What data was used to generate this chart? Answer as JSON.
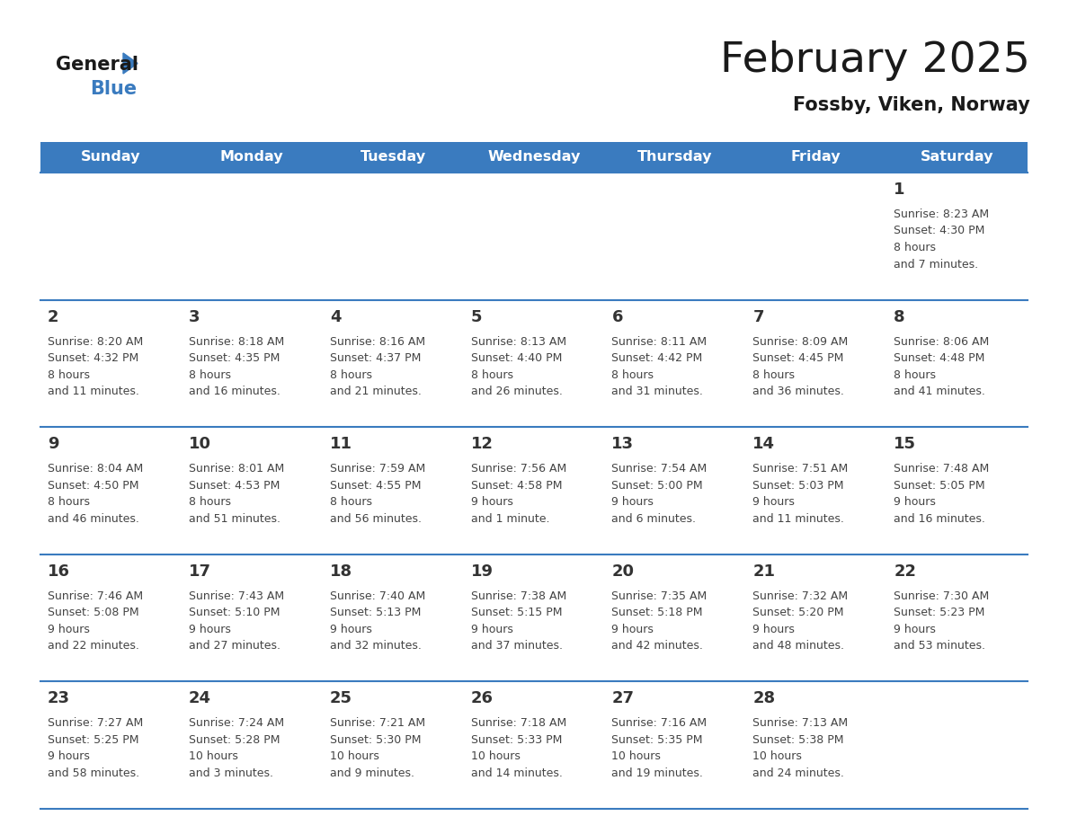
{
  "title": "February 2025",
  "subtitle": "Fossby, Viken, Norway",
  "header_color": "#3a7bbf",
  "header_text_color": "#ffffff",
  "day_names": [
    "Sunday",
    "Monday",
    "Tuesday",
    "Wednesday",
    "Thursday",
    "Friday",
    "Saturday"
  ],
  "background_color": "#ffffff",
  "line_color": "#3a7bbf",
  "day_number_color": "#333333",
  "info_color": "#444444",
  "title_color": "#1a1a1a",
  "subtitle_color": "#1a1a1a",
  "weeks": [
    [
      {
        "day": null,
        "sunrise": null,
        "sunset": null,
        "daylight": null
      },
      {
        "day": null,
        "sunrise": null,
        "sunset": null,
        "daylight": null
      },
      {
        "day": null,
        "sunrise": null,
        "sunset": null,
        "daylight": null
      },
      {
        "day": null,
        "sunrise": null,
        "sunset": null,
        "daylight": null
      },
      {
        "day": null,
        "sunrise": null,
        "sunset": null,
        "daylight": null
      },
      {
        "day": null,
        "sunrise": null,
        "sunset": null,
        "daylight": null
      },
      {
        "day": 1,
        "sunrise": "8:23 AM",
        "sunset": "4:30 PM",
        "daylight": "8 hours\nand 7 minutes."
      }
    ],
    [
      {
        "day": 2,
        "sunrise": "8:20 AM",
        "sunset": "4:32 PM",
        "daylight": "8 hours\nand 11 minutes."
      },
      {
        "day": 3,
        "sunrise": "8:18 AM",
        "sunset": "4:35 PM",
        "daylight": "8 hours\nand 16 minutes."
      },
      {
        "day": 4,
        "sunrise": "8:16 AM",
        "sunset": "4:37 PM",
        "daylight": "8 hours\nand 21 minutes."
      },
      {
        "day": 5,
        "sunrise": "8:13 AM",
        "sunset": "4:40 PM",
        "daylight": "8 hours\nand 26 minutes."
      },
      {
        "day": 6,
        "sunrise": "8:11 AM",
        "sunset": "4:42 PM",
        "daylight": "8 hours\nand 31 minutes."
      },
      {
        "day": 7,
        "sunrise": "8:09 AM",
        "sunset": "4:45 PM",
        "daylight": "8 hours\nand 36 minutes."
      },
      {
        "day": 8,
        "sunrise": "8:06 AM",
        "sunset": "4:48 PM",
        "daylight": "8 hours\nand 41 minutes."
      }
    ],
    [
      {
        "day": 9,
        "sunrise": "8:04 AM",
        "sunset": "4:50 PM",
        "daylight": "8 hours\nand 46 minutes."
      },
      {
        "day": 10,
        "sunrise": "8:01 AM",
        "sunset": "4:53 PM",
        "daylight": "8 hours\nand 51 minutes."
      },
      {
        "day": 11,
        "sunrise": "7:59 AM",
        "sunset": "4:55 PM",
        "daylight": "8 hours\nand 56 minutes."
      },
      {
        "day": 12,
        "sunrise": "7:56 AM",
        "sunset": "4:58 PM",
        "daylight": "9 hours\nand 1 minute."
      },
      {
        "day": 13,
        "sunrise": "7:54 AM",
        "sunset": "5:00 PM",
        "daylight": "9 hours\nand 6 minutes."
      },
      {
        "day": 14,
        "sunrise": "7:51 AM",
        "sunset": "5:03 PM",
        "daylight": "9 hours\nand 11 minutes."
      },
      {
        "day": 15,
        "sunrise": "7:48 AM",
        "sunset": "5:05 PM",
        "daylight": "9 hours\nand 16 minutes."
      }
    ],
    [
      {
        "day": 16,
        "sunrise": "7:46 AM",
        "sunset": "5:08 PM",
        "daylight": "9 hours\nand 22 minutes."
      },
      {
        "day": 17,
        "sunrise": "7:43 AM",
        "sunset": "5:10 PM",
        "daylight": "9 hours\nand 27 minutes."
      },
      {
        "day": 18,
        "sunrise": "7:40 AM",
        "sunset": "5:13 PM",
        "daylight": "9 hours\nand 32 minutes."
      },
      {
        "day": 19,
        "sunrise": "7:38 AM",
        "sunset": "5:15 PM",
        "daylight": "9 hours\nand 37 minutes."
      },
      {
        "day": 20,
        "sunrise": "7:35 AM",
        "sunset": "5:18 PM",
        "daylight": "9 hours\nand 42 minutes."
      },
      {
        "day": 21,
        "sunrise": "7:32 AM",
        "sunset": "5:20 PM",
        "daylight": "9 hours\nand 48 minutes."
      },
      {
        "day": 22,
        "sunrise": "7:30 AM",
        "sunset": "5:23 PM",
        "daylight": "9 hours\nand 53 minutes."
      }
    ],
    [
      {
        "day": 23,
        "sunrise": "7:27 AM",
        "sunset": "5:25 PM",
        "daylight": "9 hours\nand 58 minutes."
      },
      {
        "day": 24,
        "sunrise": "7:24 AM",
        "sunset": "5:28 PM",
        "daylight": "10 hours\nand 3 minutes."
      },
      {
        "day": 25,
        "sunrise": "7:21 AM",
        "sunset": "5:30 PM",
        "daylight": "10 hours\nand 9 minutes."
      },
      {
        "day": 26,
        "sunrise": "7:18 AM",
        "sunset": "5:33 PM",
        "daylight": "10 hours\nand 14 minutes."
      },
      {
        "day": 27,
        "sunrise": "7:16 AM",
        "sunset": "5:35 PM",
        "daylight": "10 hours\nand 19 minutes."
      },
      {
        "day": 28,
        "sunrise": "7:13 AM",
        "sunset": "5:38 PM",
        "daylight": "10 hours\nand 24 minutes."
      },
      {
        "day": null,
        "sunrise": null,
        "sunset": null,
        "daylight": null
      }
    ]
  ],
  "logo_text_general": "General",
  "logo_text_blue": "Blue",
  "logo_triangle_color": "#3a7bbf",
  "logo_general_color": "#1a1a1a"
}
